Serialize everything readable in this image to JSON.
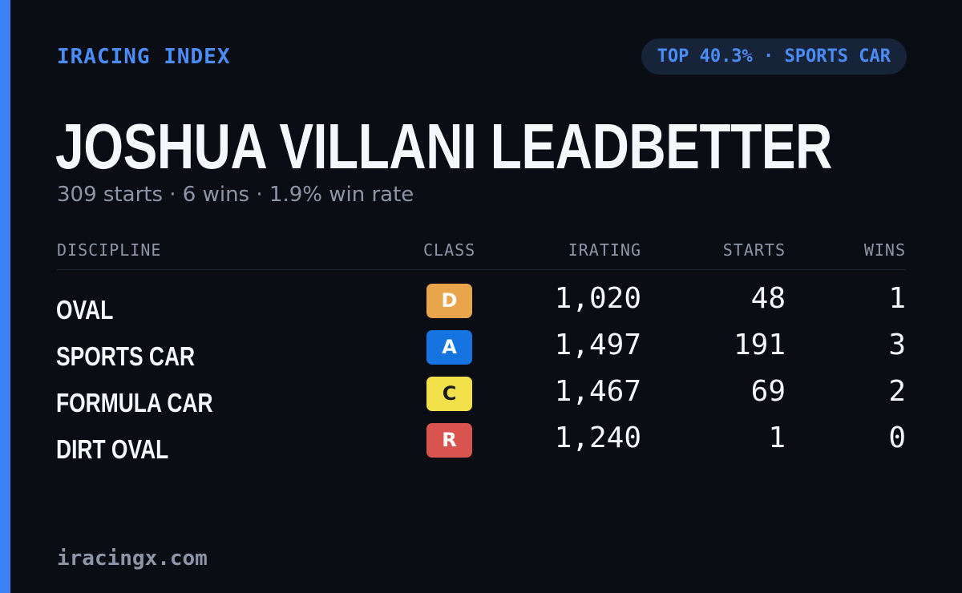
{
  "brand": "IRACING INDEX",
  "rank_badge": "TOP 40.3% · SPORTS CAR",
  "driver_name": "JOSHUA VILLANI LEADBETTER",
  "summary": "309 starts · 6 wins · 1.9% win rate",
  "columns": {
    "discipline": "DISCIPLINE",
    "class": "CLASS",
    "irating": "IRATING",
    "starts": "STARTS",
    "wins": "WINS"
  },
  "rows": [
    {
      "discipline": "OVAL",
      "class": "D",
      "class_bg": "#e8a54b",
      "class_fg": "#ffffff",
      "irating": "1,020",
      "starts": "48",
      "wins": "1"
    },
    {
      "discipline": "SPORTS CAR",
      "class": "A",
      "class_bg": "#1574e0",
      "class_fg": "#ffffff",
      "irating": "1,497",
      "starts": "191",
      "wins": "3"
    },
    {
      "discipline": "FORMULA CAR",
      "class": "C",
      "class_bg": "#f1e04a",
      "class_fg": "#1a1a1a",
      "irating": "1,467",
      "starts": "69",
      "wins": "2"
    },
    {
      "discipline": "DIRT OVAL",
      "class": "R",
      "class_bg": "#d9534f",
      "class_fg": "#ffffff",
      "irating": "1,240",
      "starts": "1",
      "wins": "0"
    }
  ],
  "footer": "iracingx.com",
  "colors": {
    "background": "#0a0d14",
    "accent": "#3b82f6",
    "text": "#f5f7fb",
    "muted": "#8d96a8"
  }
}
